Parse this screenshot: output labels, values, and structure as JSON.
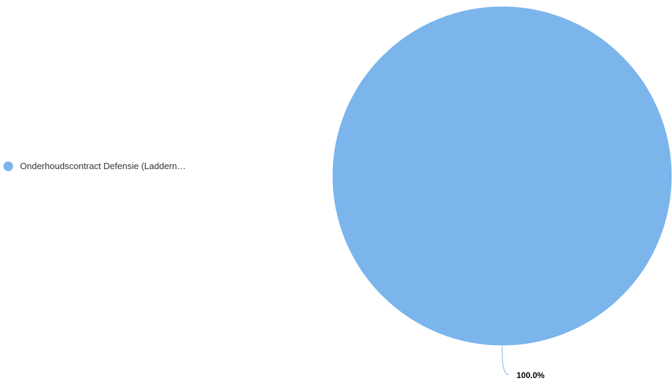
{
  "chart_data": {
    "type": "pie",
    "title": "",
    "slices": [
      {
        "label": "Onderhoudscontract Defensie (Laddern…",
        "value": 100.0,
        "display_label": "100.0%",
        "color": "#7cb5ec"
      }
    ],
    "legend_position": "left"
  }
}
